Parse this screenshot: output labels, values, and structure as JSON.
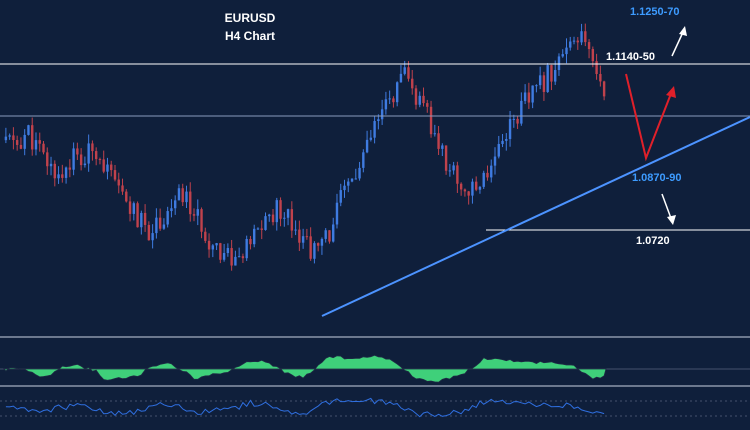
{
  "chart_data": {
    "type": "line",
    "symbol": "EURUSD",
    "timeframe": "H4 Chart",
    "colors": {
      "background": "#0f1f3b",
      "candle_up": "#3f7be0",
      "candle_down": "#c0424c",
      "trendline": "#4c93ff",
      "level_line": "#ffffff",
      "forecast_red": "#e0202a",
      "forecast_white": "#ffffff",
      "blue_label": "#3d9bff",
      "white_label": "#ffffff",
      "oscillator_fill": "#3fd07a",
      "oscillator_line": "#1e2a44",
      "rsi_line": "#2f6fe0",
      "divider": "#c9d2e0"
    },
    "levels": [
      {
        "label": "1.1250-70",
        "color": "blue"
      },
      {
        "label": "1.1140-50",
        "color": "white"
      },
      {
        "label": "1.0870-90",
        "color": "blue"
      },
      {
        "label": "1.0720",
        "color": "white"
      }
    ],
    "close_series": [
      1.095,
      1.094,
      1.097,
      1.092,
      1.088,
      1.086,
      1.091,
      1.089,
      1.094,
      1.088,
      1.082,
      1.079,
      1.074,
      1.072,
      1.075,
      1.078,
      1.081,
      1.076,
      1.071,
      1.068,
      1.066,
      1.064,
      1.068,
      1.073,
      1.076,
      1.078,
      1.074,
      1.069,
      1.066,
      1.07,
      1.078,
      1.084,
      1.088,
      1.096,
      1.102,
      1.107,
      1.111,
      1.106,
      1.101,
      1.094,
      1.088,
      1.084,
      1.081,
      1.085,
      1.091,
      1.097,
      1.101,
      1.105,
      1.108,
      1.112,
      1.116,
      1.118,
      1.121,
      1.115,
      1.109
    ]
  }
}
